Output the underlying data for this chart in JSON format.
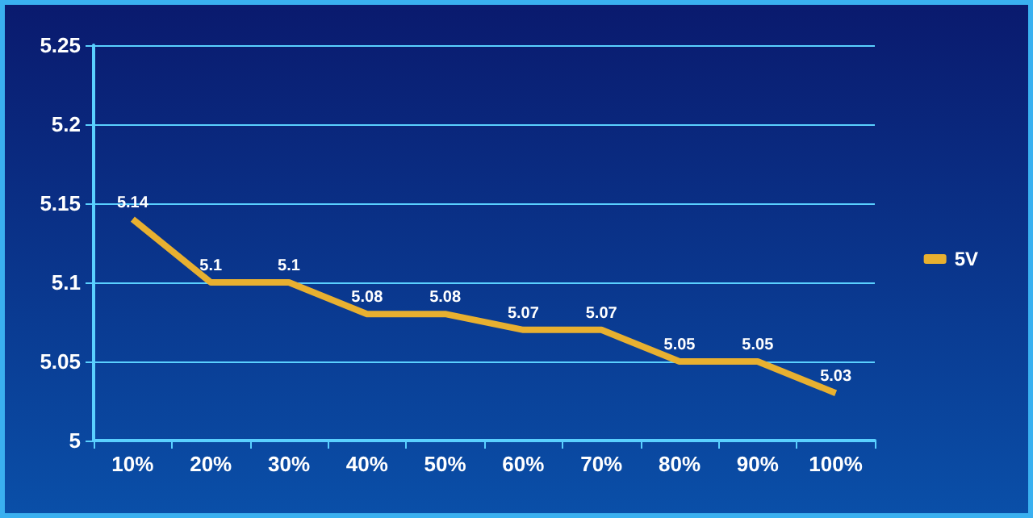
{
  "chart_data": {
    "type": "line",
    "categories": [
      "10%",
      "20%",
      "30%",
      "40%",
      "50%",
      "60%",
      "70%",
      "80%",
      "90%",
      "100%"
    ],
    "series": [
      {
        "name": "5V",
        "color": "#e8b030",
        "values": [
          5.14,
          5.1,
          5.1,
          5.08,
          5.08,
          5.07,
          5.07,
          5.05,
          5.05,
          5.03
        ]
      }
    ],
    "ylim": [
      5,
      5.25
    ],
    "yticks": [
      5,
      5.05,
      5.1,
      5.15,
      5.2,
      5.25
    ],
    "grid": "y",
    "legend": "right",
    "marker": "none",
    "data_labels": true
  }
}
